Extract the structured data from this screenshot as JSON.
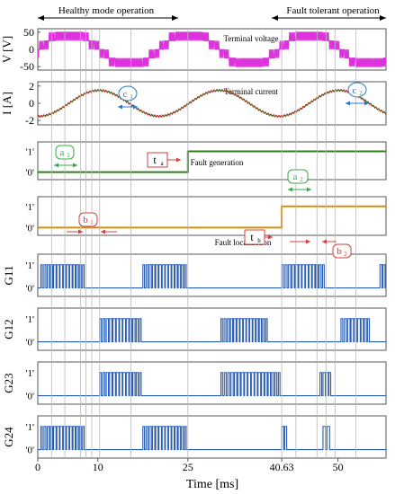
{
  "header": {
    "healthy_label": "Healthy mode operation",
    "fault_label": "Fault tolerant operation"
  },
  "chart_data": {
    "type": "line",
    "x_range_ms": [
      0,
      58
    ],
    "xlabel": "Time [ms]",
    "x_ticks": [
      {
        "value": 0,
        "label": "0"
      },
      {
        "value": 10,
        "label": "10"
      },
      {
        "value": 25,
        "label": "25"
      },
      {
        "value": 40.63,
        "label": "40.63"
      },
      {
        "value": 50,
        "label": "50"
      }
    ],
    "vertical_markers_ms": [
      2.3,
      4.5,
      7.1,
      8.0,
      9.0,
      10.3,
      15.5,
      25.0,
      40.63,
      43.0,
      46.5,
      48.0,
      49.5,
      53.0
    ],
    "panels": [
      {
        "id": "voltage",
        "ylabel": "V [V]",
        "yticks": [
          "50",
          "0",
          "-50"
        ],
        "ylim": [
          -60,
          60
        ],
        "title": "Terminal voltage",
        "amplitude_V": 50,
        "period_ms": 20,
        "color": "#dd33dd"
      },
      {
        "id": "current",
        "ylabel": "I [A]",
        "yticks": [
          "2",
          "0",
          "-2"
        ],
        "ylim": [
          -2.5,
          2.5
        ],
        "title": "Terminal current",
        "amplitude_A": 1.5,
        "period_ms": 20,
        "color": "#cc2222"
      },
      {
        "id": "fault_generation",
        "ylabel": "",
        "yticks": [
          "'1'",
          "'0'"
        ],
        "title": "Fault generation",
        "step_ms": 25,
        "color": "#2e7d1e"
      },
      {
        "id": "fault_localization",
        "ylabel": "",
        "yticks": [
          "'1'",
          "'0'"
        ],
        "title": "Fault localization",
        "step_ms": 40.63,
        "color": "#d4900a"
      },
      {
        "id": "G11",
        "ylabel": "G11",
        "yticks": [
          "'1'",
          "'0'"
        ],
        "color": "#2a5db0",
        "bursts_ms": [
          [
            0.5,
            8.0
          ],
          [
            17.5,
            25.0
          ],
          [
            40.63,
            48.0
          ],
          [
            57.0,
            58.0
          ]
        ]
      },
      {
        "id": "G12",
        "ylabel": "G12",
        "yticks": [
          "'1'",
          "'0'"
        ],
        "color": "#2a5db0",
        "bursts_ms": [
          [
            10.3,
            17.5
          ],
          [
            30.5,
            38.5
          ],
          [
            50.5,
            55.5
          ]
        ]
      },
      {
        "id": "G23",
        "ylabel": "G23",
        "yticks": [
          "'1'",
          "'0'"
        ],
        "color": "#2a5db0",
        "bursts_ms": [
          [
            10.3,
            17.5
          ],
          [
            30.5,
            40.63
          ],
          [
            47.0,
            49.0
          ]
        ]
      },
      {
        "id": "G24",
        "ylabel": "G24",
        "yticks": [
          "'1'",
          "'0'"
        ],
        "color": "#2a5db0",
        "bursts_ms": [
          [
            0.5,
            8.0
          ],
          [
            17.5,
            25.0
          ],
          [
            40.63,
            41.6
          ],
          [
            47.5,
            48.8
          ]
        ]
      }
    ],
    "annotations": {
      "c1": {
        "text": "c",
        "sub": "1"
      },
      "c2": {
        "text": "c",
        "sub": "2"
      },
      "a1": {
        "text": "a",
        "sub": "1"
      },
      "a2": {
        "text": "a",
        "sub": "2"
      },
      "b1": {
        "text": "b",
        "sub": "1"
      },
      "b2": {
        "text": "b",
        "sub": "2"
      },
      "ta": {
        "text": "t",
        "sub": "a"
      },
      "tb": {
        "text": "t",
        "sub": "b"
      }
    },
    "colors": {
      "annotation_green": "#3aa84a",
      "annotation_red": "#d04040",
      "annotation_blue": "#2a78c8",
      "grid": "#b8b8b8"
    }
  }
}
